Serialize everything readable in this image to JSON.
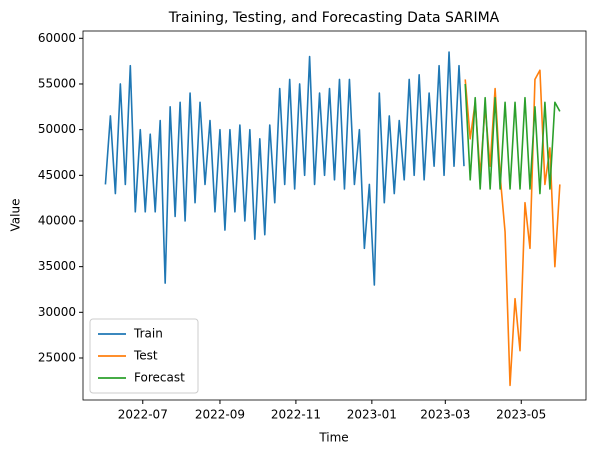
{
  "chart_data": {
    "type": "line",
    "title": "Training, Testing, and Forecasting Data SARIMA",
    "x_label": "Time",
    "y_label": "Value",
    "xlim": [
      "2022-05-14",
      "2023-06-22"
    ],
    "xticks": [
      {
        "value": "2022-07-01",
        "label": "2022-07"
      },
      {
        "value": "2022-09-01",
        "label": "2022-09"
      },
      {
        "value": "2022-11-01",
        "label": "2022-11"
      },
      {
        "value": "2023-01-01",
        "label": "2023-01"
      },
      {
        "value": "2023-03-01",
        "label": "2023-03"
      },
      {
        "value": "2023-05-01",
        "label": "2023-05"
      }
    ],
    "ylim": [
      20400,
      60800
    ],
    "yticks": [
      25000,
      30000,
      35000,
      40000,
      45000,
      50000,
      55000,
      60000
    ],
    "legend": "lower left",
    "series": [
      {
        "name": "Train",
        "color": "#1f77b4",
        "x": [
          "2022-06-01",
          "2022-06-05",
          "2022-06-09",
          "2022-06-13",
          "2022-06-17",
          "2022-06-21",
          "2022-06-25",
          "2022-06-29",
          "2022-07-03",
          "2022-07-07",
          "2022-07-11",
          "2022-07-15",
          "2022-07-19",
          "2022-07-23",
          "2022-07-27",
          "2022-07-31",
          "2022-08-04",
          "2022-08-08",
          "2022-08-12",
          "2022-08-16",
          "2022-08-20",
          "2022-08-24",
          "2022-08-28",
          "2022-09-01",
          "2022-09-05",
          "2022-09-09",
          "2022-09-13",
          "2022-09-17",
          "2022-09-21",
          "2022-09-25",
          "2022-09-29",
          "2022-10-03",
          "2022-10-07",
          "2022-10-11",
          "2022-10-15",
          "2022-10-19",
          "2022-10-23",
          "2022-10-27",
          "2022-10-31",
          "2022-11-04",
          "2022-11-08",
          "2022-11-12",
          "2022-11-16",
          "2022-11-20",
          "2022-11-24",
          "2022-11-28",
          "2022-12-02",
          "2022-12-06",
          "2022-12-10",
          "2022-12-14",
          "2022-12-18",
          "2022-12-22",
          "2022-12-26",
          "2022-12-30",
          "2023-01-03",
          "2023-01-07",
          "2023-01-11",
          "2023-01-15",
          "2023-01-19",
          "2023-01-23",
          "2023-01-27",
          "2023-01-31",
          "2023-02-04",
          "2023-02-08",
          "2023-02-12",
          "2023-02-16",
          "2023-02-20",
          "2023-02-24",
          "2023-02-28",
          "2023-03-04",
          "2023-03-08",
          "2023-03-12",
          "2023-03-16"
        ],
        "values": [
          44000,
          51500,
          43000,
          55000,
          44000,
          57000,
          41000,
          50000,
          41000,
          49500,
          41000,
          51000,
          33200,
          52500,
          40500,
          53000,
          40000,
          54000,
          42000,
          53000,
          44000,
          51000,
          41000,
          50000,
          39000,
          50000,
          41000,
          50500,
          40000,
          50000,
          38000,
          49000,
          38500,
          50500,
          42000,
          54500,
          44000,
          55500,
          43500,
          55000,
          45000,
          58000,
          44000,
          54000,
          45000,
          54500,
          44500,
          55500,
          43500,
          55500,
          44000,
          50000,
          37000,
          44000,
          33000,
          54000,
          42000,
          51500,
          43000,
          51000,
          44500,
          55500,
          45000,
          56000,
          44500,
          54000,
          46000,
          57000,
          45000,
          58500,
          46000,
          57000,
          46000
        ]
      },
      {
        "name": "Test",
        "color": "#ff7f0e",
        "x": [
          "2023-03-17",
          "2023-03-21",
          "2023-03-25",
          "2023-03-29",
          "2023-04-02",
          "2023-04-06",
          "2023-04-10",
          "2023-04-14",
          "2023-04-18",
          "2023-04-22",
          "2023-04-26",
          "2023-04-30",
          "2023-05-04",
          "2023-05-08",
          "2023-05-12",
          "2023-05-16",
          "2023-05-20",
          "2023-05-24",
          "2023-05-28",
          "2023-06-01"
        ],
        "values": [
          55500,
          49000,
          53000,
          45000,
          52500,
          46000,
          54500,
          45000,
          38800,
          22000,
          31500,
          25800,
          42000,
          37000,
          55500,
          56500,
          44000,
          48000,
          35000,
          44000
        ]
      },
      {
        "name": "Forecast",
        "color": "#2ca02c",
        "x": [
          "2023-03-17",
          "2023-03-21",
          "2023-03-25",
          "2023-03-29",
          "2023-04-02",
          "2023-04-06",
          "2023-04-10",
          "2023-04-14",
          "2023-04-18",
          "2023-04-22",
          "2023-04-26",
          "2023-04-30",
          "2023-05-04",
          "2023-05-08",
          "2023-05-12",
          "2023-05-16",
          "2023-05-20",
          "2023-05-24",
          "2023-05-28",
          "2023-06-01"
        ],
        "values": [
          55000,
          44500,
          53500,
          43500,
          53500,
          43500,
          53500,
          43500,
          53000,
          43500,
          53000,
          43500,
          53500,
          43500,
          52500,
          43000,
          53000,
          43500,
          53000,
          52000
        ]
      }
    ]
  }
}
